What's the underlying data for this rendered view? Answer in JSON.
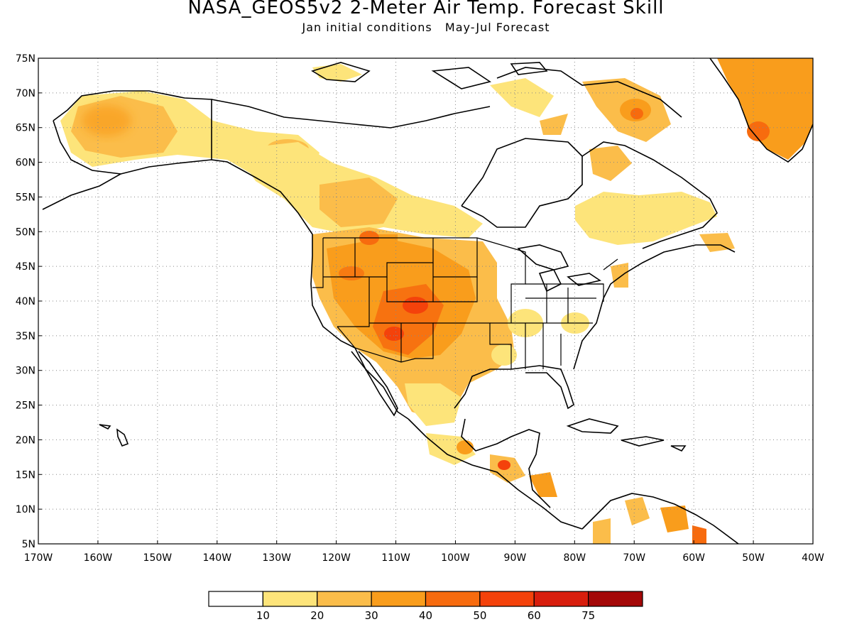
{
  "title": "NASA_GEOS5v2 2-Meter Air Temp. Forecast Skill",
  "subtitle": "Jan initial conditions   May-Jul Forecast",
  "map": {
    "lon_range": [
      -170,
      -40
    ],
    "lat_range": [
      5,
      75
    ],
    "lat_ticks": [
      "75N",
      "70N",
      "65N",
      "60N",
      "55N",
      "50N",
      "45N",
      "40N",
      "35N",
      "30N",
      "25N",
      "20N",
      "15N",
      "10N",
      "5N"
    ],
    "lon_ticks": [
      "170W",
      "160W",
      "150W",
      "140W",
      "130W",
      "120W",
      "110W",
      "100W",
      "90W",
      "80W",
      "70W",
      "60W",
      "50W",
      "40W"
    ],
    "gridlines": "dotted"
  },
  "colorbar": {
    "colors": [
      "#ffffff",
      "#fde47a",
      "#fbbd4a",
      "#f99d1c",
      "#f76b0e",
      "#f4420b",
      "#d81e0d",
      "#a40808"
    ],
    "labels": [
      "10",
      "20",
      "30",
      "40",
      "50",
      "60",
      "75"
    ]
  }
}
